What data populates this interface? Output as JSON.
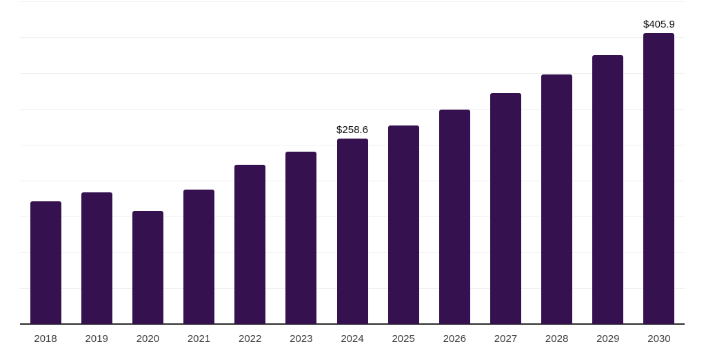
{
  "chart_data": {
    "type": "bar",
    "title": "",
    "xlabel": "",
    "ylabel": "",
    "categories": [
      "2018",
      "2019",
      "2020",
      "2021",
      "2022",
      "2023",
      "2024",
      "2025",
      "2026",
      "2027",
      "2028",
      "2029",
      "2030"
    ],
    "values": [
      171.5,
      183.6,
      157.8,
      187.5,
      222.5,
      240.0,
      258.6,
      277.1,
      298.6,
      322.5,
      347.7,
      375.2,
      405.9
    ],
    "data_labels": [
      {
        "category": "2024",
        "text": "$258.6"
      },
      {
        "category": "2030",
        "text": "$405.9"
      }
    ],
    "ylim": [
      0,
      450
    ],
    "gridline_step": 50,
    "grid": true,
    "legend": "none",
    "bar_color": "#35124f",
    "gridline_color": "#f0f0f0",
    "axis_line_color": "#2d2d2d",
    "tick_label_color": "#3c3c3c",
    "value_label_color": "#111111"
  }
}
